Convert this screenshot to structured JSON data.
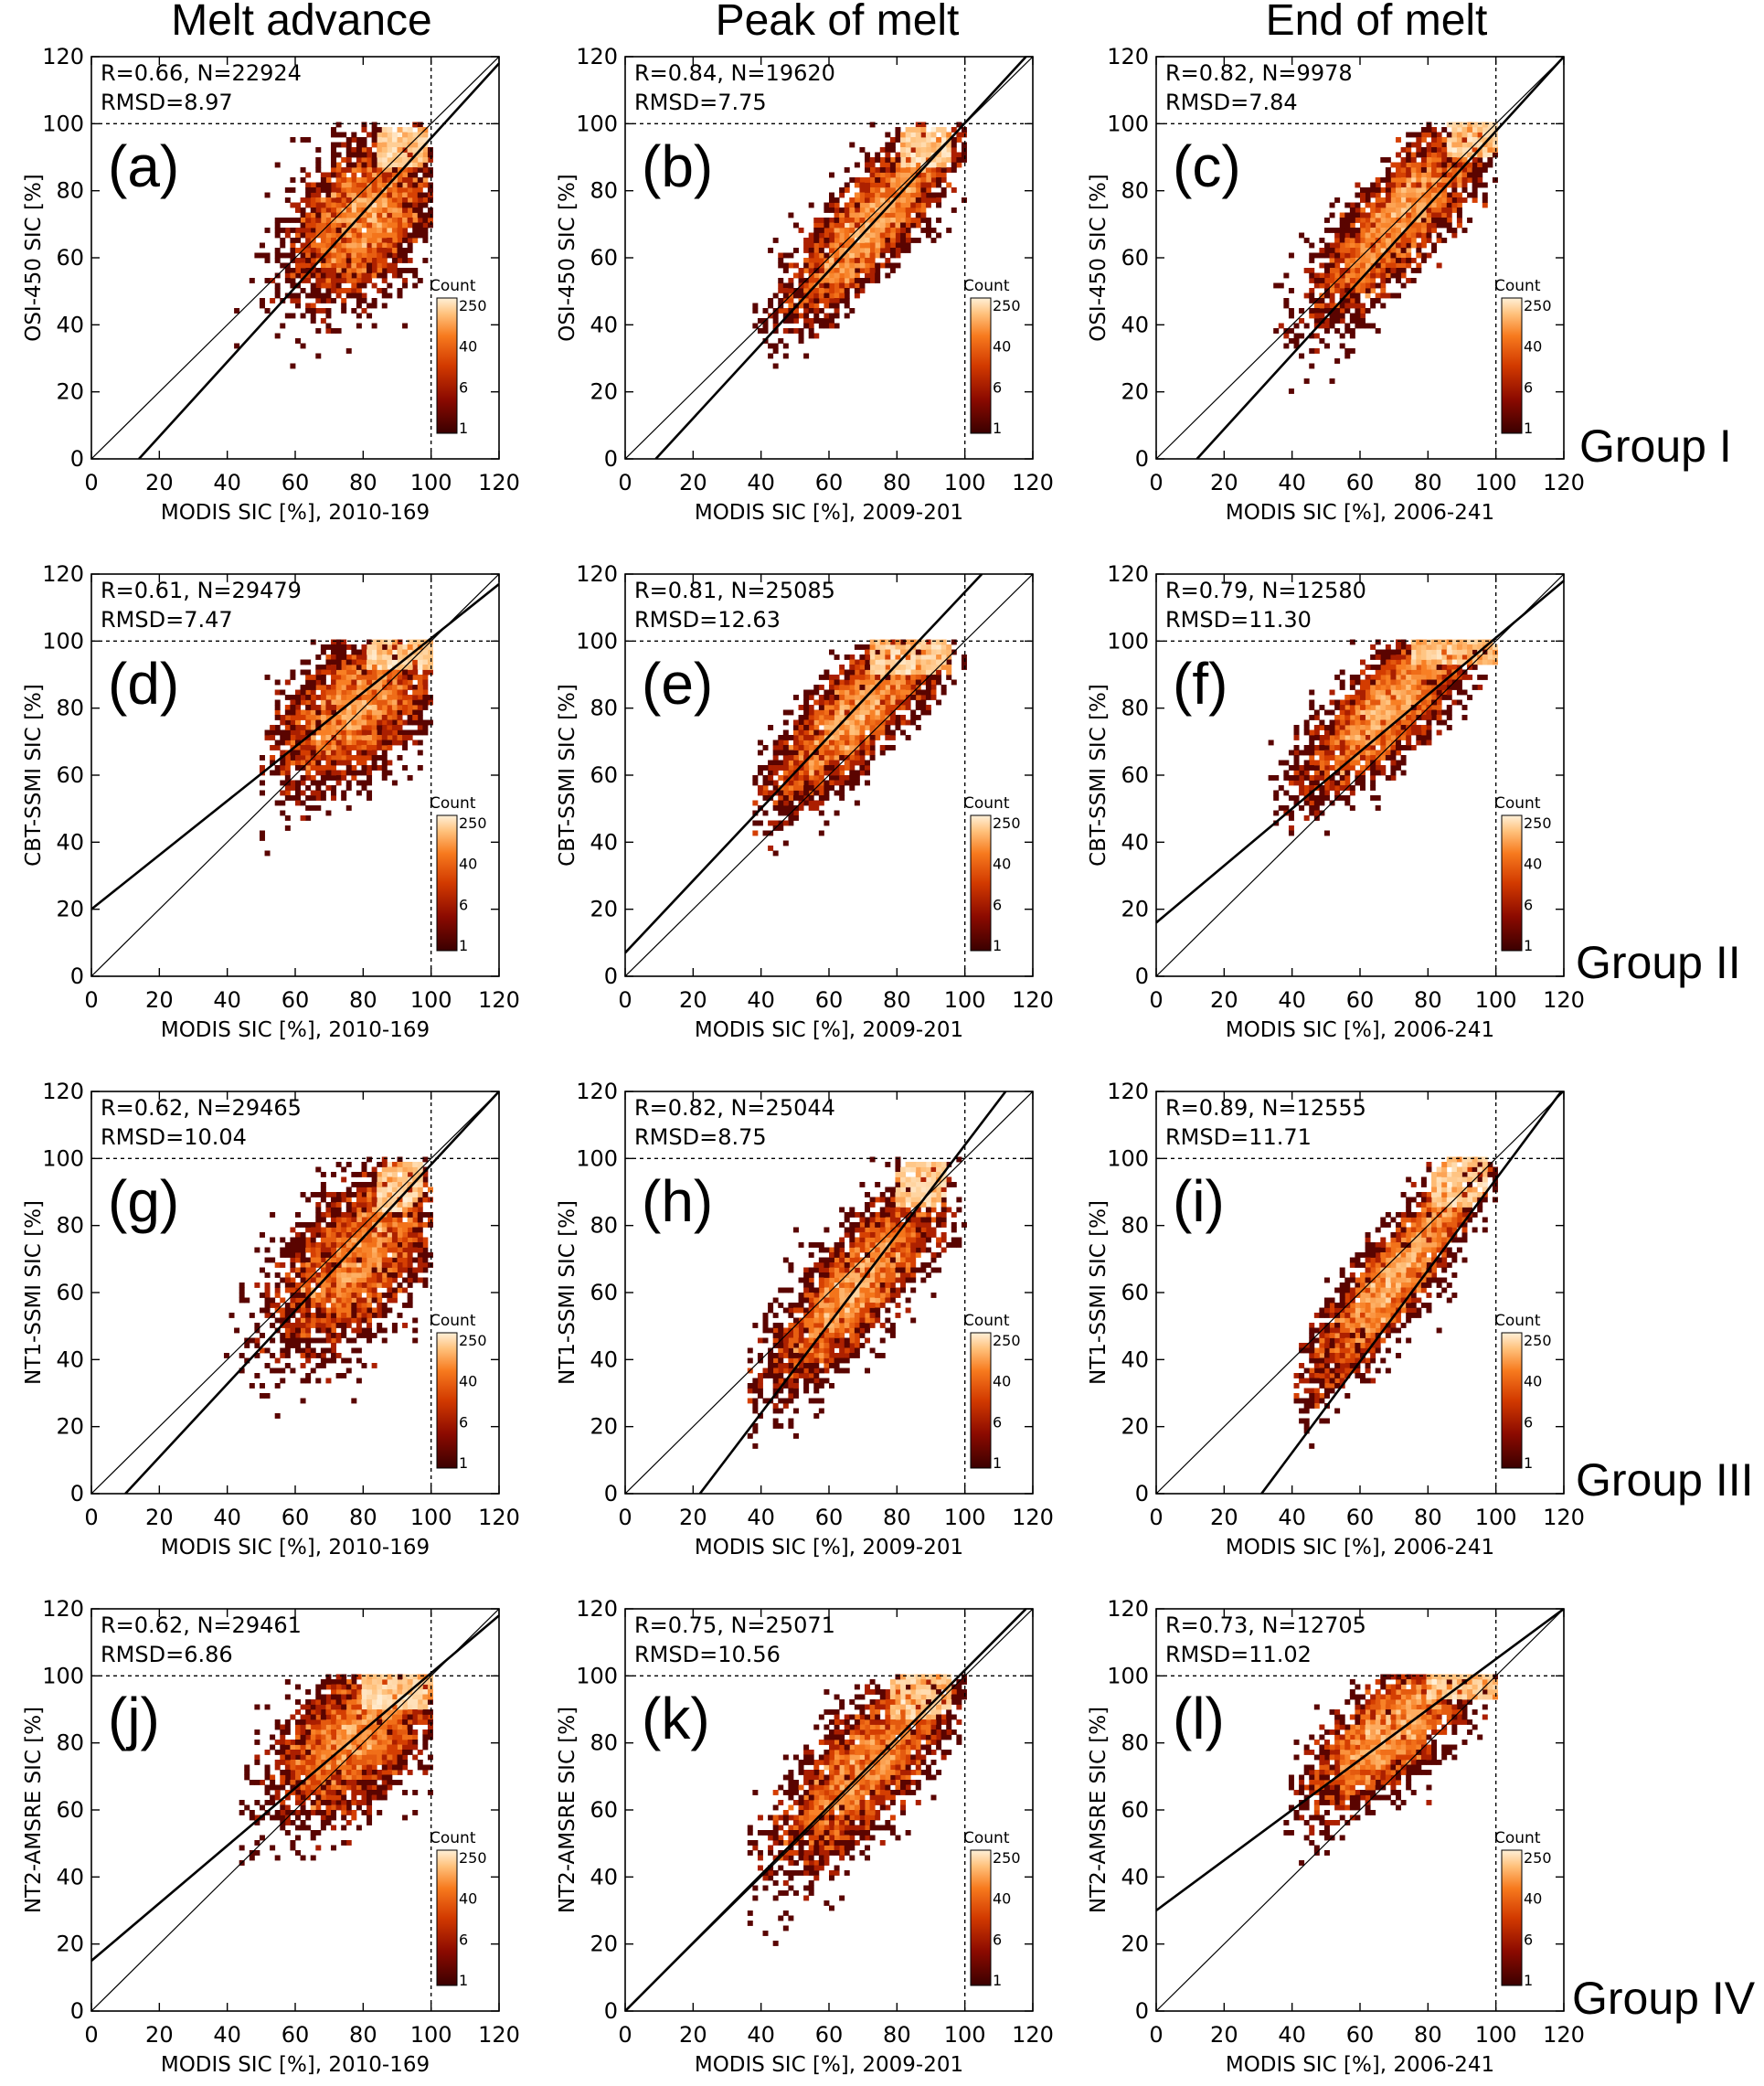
{
  "column_titles": [
    "Melt advance",
    "Peak of melt",
    "End of melt"
  ],
  "group_labels": [
    "Group I",
    "Group II",
    "Group III",
    "Group IV"
  ],
  "colorbar": {
    "title": "Count",
    "ticks": [
      "250",
      "40",
      "6",
      "1"
    ],
    "colors": [
      "#3a0000",
      "#8b0a00",
      "#d23a00",
      "#f77a1e",
      "#ffc07a",
      "#fff0d8"
    ]
  },
  "chart_data": [
    {
      "id": "a",
      "type": "heatmap",
      "letter": "(a)",
      "ylabel": "OSI-450 SIC [%]",
      "xlabel": "MODIS SIC [%], 2010-169",
      "stat1": "R=0.66, N=22924",
      "stat2": "RMSD=8.97",
      "R": 0.66,
      "N": 22924,
      "RMSD": 8.97,
      "regression": [
        [
          14,
          0
        ],
        [
          120,
          118
        ]
      ],
      "cloud": {
        "cx": 80,
        "cy": 72,
        "sx": 11,
        "sy": 13,
        "rho": 0.45,
        "xmin": 42,
        "ymin": 16,
        "core": [
          [
            85,
            88
          ],
          [
            98,
            98
          ]
        ]
      },
      "xlim": [
        0,
        120
      ],
      "ylim": [
        0,
        120
      ],
      "xticks": [
        0,
        20,
        40,
        60,
        80,
        100,
        120
      ],
      "yticks": [
        0,
        20,
        40,
        60,
        80,
        100,
        120
      ]
    },
    {
      "id": "b",
      "type": "heatmap",
      "letter": "(b)",
      "ylabel": "OSI-450 SIC [%]",
      "xlabel": "MODIS SIC [%], 2009-201",
      "stat1": "R=0.84, N=19620",
      "stat2": "RMSD=7.75",
      "R": 0.84,
      "N": 19620,
      "RMSD": 7.75,
      "regression": [
        [
          9,
          0
        ],
        [
          118,
          120
        ]
      ],
      "cloud": {
        "cx": 72,
        "cy": 70,
        "sx": 13,
        "sy": 15,
        "rho": 0.84,
        "xmin": 38,
        "ymin": 14,
        "core": [
          [
            82,
            88
          ],
          [
            95,
            98
          ]
        ]
      },
      "xlim": [
        0,
        120
      ],
      "ylim": [
        0,
        120
      ],
      "xticks": [
        0,
        20,
        40,
        60,
        80,
        100,
        120
      ],
      "yticks": [
        0,
        20,
        40,
        60,
        80,
        100,
        120
      ]
    },
    {
      "id": "c",
      "type": "heatmap",
      "letter": "(c)",
      "ylabel": "OSI-450 SIC [%]",
      "xlabel": "MODIS SIC [%], 2006-241",
      "stat1": "R=0.82, N=9978",
      "stat2": "RMSD=7.84",
      "R": 0.82,
      "N": 9978,
      "RMSD": 7.84,
      "regression": [
        [
          12,
          0
        ],
        [
          120,
          120
        ]
      ],
      "cloud": {
        "cx": 72,
        "cy": 72,
        "sx": 13,
        "sy": 15,
        "rho": 0.82,
        "xmin": 34,
        "ymin": 18,
        "core": [
          [
            86,
            90
          ],
          [
            100,
            100
          ]
        ]
      },
      "xlim": [
        0,
        120
      ],
      "ylim": [
        0,
        120
      ],
      "xticks": [
        0,
        20,
        40,
        60,
        80,
        100,
        120
      ],
      "yticks": [
        0,
        20,
        40,
        60,
        80,
        100,
        120
      ]
    },
    {
      "id": "d",
      "type": "heatmap",
      "letter": "(d)",
      "ylabel": "CBT-SSMI SIC [%]",
      "xlabel": "MODIS SIC [%], 2010-169",
      "stat1": "R=0.61, N=29479",
      "stat2": "RMSD=7.47",
      "R": 0.61,
      "N": 29479,
      "RMSD": 7.47,
      "regression": [
        [
          0,
          20
        ],
        [
          120,
          117
        ]
      ],
      "cloud": {
        "cx": 78,
        "cy": 80,
        "sx": 12,
        "sy": 12,
        "rho": 0.55,
        "xmin": 50,
        "ymin": 15,
        "core": [
          [
            82,
            92
          ],
          [
            99,
            100
          ]
        ]
      },
      "xlim": [
        0,
        120
      ],
      "ylim": [
        0,
        120
      ],
      "xticks": [
        0,
        20,
        40,
        60,
        80,
        100,
        120
      ],
      "yticks": [
        0,
        20,
        40,
        60,
        80,
        100,
        120
      ]
    },
    {
      "id": "e",
      "type": "heatmap",
      "letter": "(e)",
      "ylabel": "CBT-SSMI SIC [%]",
      "xlabel": "MODIS SIC [%], 2009-201",
      "stat1": "R=0.81, N=25085",
      "stat2": "RMSD=12.63",
      "R": 0.81,
      "N": 25085,
      "RMSD": 12.63,
      "regression": [
        [
          0,
          7
        ],
        [
          105,
          120
        ]
      ],
      "cloud": {
        "cx": 68,
        "cy": 78,
        "sx": 13,
        "sy": 14,
        "rho": 0.81,
        "xmin": 38,
        "ymin": 20,
        "core": [
          [
            72,
            90
          ],
          [
            95,
            100
          ]
        ]
      },
      "xlim": [
        0,
        120
      ],
      "ylim": [
        0,
        120
      ],
      "xticks": [
        0,
        20,
        40,
        60,
        80,
        100,
        120
      ],
      "yticks": [
        0,
        20,
        40,
        60,
        80,
        100,
        120
      ]
    },
    {
      "id": "f",
      "type": "heatmap",
      "letter": "(f)",
      "ylabel": "CBT-SSMI SIC [%]",
      "xlabel": "MODIS SIC [%], 2006-241",
      "stat1": "R=0.79, N=12580",
      "stat2": "RMSD=11.30",
      "R": 0.79,
      "N": 12580,
      "RMSD": 11.3,
      "regression": [
        [
          0,
          16
        ],
        [
          120,
          118
        ]
      ],
      "cloud": {
        "cx": 68,
        "cy": 80,
        "sx": 13,
        "sy": 13,
        "rho": 0.79,
        "xmin": 34,
        "ymin": 18,
        "core": [
          [
            75,
            94
          ],
          [
            100,
            100
          ]
        ]
      },
      "xlim": [
        0,
        120
      ],
      "ylim": [
        0,
        120
      ],
      "xticks": [
        0,
        20,
        40,
        60,
        80,
        100,
        120
      ],
      "yticks": [
        0,
        20,
        40,
        60,
        80,
        100,
        120
      ]
    },
    {
      "id": "g",
      "type": "heatmap",
      "letter": "(g)",
      "ylabel": "NT1-SSMI SIC [%]",
      "xlabel": "MODIS SIC [%], 2010-169",
      "stat1": "R=0.62, N=29465",
      "stat2": "RMSD=10.04",
      "R": 0.62,
      "N": 29465,
      "RMSD": 10.04,
      "regression": [
        [
          10,
          0
        ],
        [
          120,
          120
        ]
      ],
      "cloud": {
        "cx": 78,
        "cy": 70,
        "sx": 12,
        "sy": 14,
        "rho": 0.55,
        "xmin": 40,
        "ymin": 14,
        "core": [
          [
            84,
            85
          ],
          [
            97,
            98
          ]
        ]
      },
      "xlim": [
        0,
        120
      ],
      "ylim": [
        0,
        120
      ],
      "xticks": [
        0,
        20,
        40,
        60,
        80,
        100,
        120
      ],
      "yticks": [
        0,
        20,
        40,
        60,
        80,
        100,
        120
      ]
    },
    {
      "id": "h",
      "type": "heatmap",
      "letter": "(h)",
      "ylabel": "NT1-SSMI SIC [%]",
      "xlabel": "MODIS SIC [%], 2009-201",
      "stat1": "R=0.82, N=25044",
      "stat2": "RMSD=8.75",
      "R": 0.82,
      "N": 25044,
      "RMSD": 8.75,
      "regression": [
        [
          22,
          0
        ],
        [
          112,
          120
        ]
      ],
      "cloud": {
        "cx": 68,
        "cy": 62,
        "sx": 13,
        "sy": 16,
        "rho": 0.82,
        "xmin": 36,
        "ymin": 14,
        "core": [
          [
            80,
            86
          ],
          [
            94,
            98
          ]
        ]
      },
      "xlim": [
        0,
        120
      ],
      "ylim": [
        0,
        120
      ],
      "xticks": [
        0,
        20,
        40,
        60,
        80,
        100,
        120
      ],
      "yticks": [
        0,
        20,
        40,
        60,
        80,
        100,
        120
      ]
    },
    {
      "id": "i",
      "type": "heatmap",
      "letter": "(i)",
      "ylabel": "NT1-SSMI SIC [%]",
      "xlabel": "MODIS SIC [%], 2006-241",
      "stat1": "R=0.89, N=12555",
      "stat2": "RMSD=11.71",
      "R": 0.89,
      "N": 12555,
      "RMSD": 11.71,
      "regression": [
        [
          31,
          0
        ],
        [
          120,
          121
        ]
      ],
      "cloud": {
        "cx": 70,
        "cy": 64,
        "sx": 13,
        "sy": 17,
        "rho": 0.89,
        "xmin": 40,
        "ymin": 14,
        "core": [
          [
            82,
            86
          ],
          [
            97,
            100
          ]
        ]
      },
      "xlim": [
        0,
        120
      ],
      "ylim": [
        0,
        120
      ],
      "xticks": [
        0,
        20,
        40,
        60,
        80,
        100,
        120
      ],
      "yticks": [
        0,
        20,
        40,
        60,
        80,
        100,
        120
      ]
    },
    {
      "id": "j",
      "type": "heatmap",
      "letter": "(j)",
      "ylabel": "NT2-AMSRE SIC [%]",
      "xlabel": "MODIS SIC [%], 2010-169",
      "stat1": "R=0.62, N=29461",
      "stat2": "RMSD=6.86",
      "R": 0.62,
      "N": 29461,
      "RMSD": 6.86,
      "regression": [
        [
          0,
          15
        ],
        [
          120,
          118
        ]
      ],
      "cloud": {
        "cx": 78,
        "cy": 82,
        "sx": 12,
        "sy": 12,
        "rho": 0.55,
        "xmin": 42,
        "ymin": 16,
        "core": [
          [
            80,
            90
          ],
          [
            99,
            100
          ]
        ]
      },
      "xlim": [
        0,
        120
      ],
      "ylim": [
        0,
        120
      ],
      "xticks": [
        0,
        20,
        40,
        60,
        80,
        100,
        120
      ],
      "yticks": [
        0,
        20,
        40,
        60,
        80,
        100,
        120
      ]
    },
    {
      "id": "k",
      "type": "heatmap",
      "letter": "(k)",
      "ylabel": "NT2-AMSRE SIC [%]",
      "xlabel": "MODIS SIC [%], 2009-201",
      "stat1": "R=0.75, N=25071",
      "stat2": "RMSD=10.56",
      "R": 0.75,
      "N": 25071,
      "RMSD": 10.56,
      "regression": [
        [
          0,
          0
        ],
        [
          118,
          120
        ]
      ],
      "cloud": {
        "cx": 70,
        "cy": 72,
        "sx": 13,
        "sy": 15,
        "rho": 0.75,
        "xmin": 36,
        "ymin": 16,
        "core": [
          [
            78,
            88
          ],
          [
            95,
            100
          ]
        ]
      },
      "xlim": [
        0,
        120
      ],
      "ylim": [
        0,
        120
      ],
      "xticks": [
        0,
        20,
        40,
        60,
        80,
        100,
        120
      ],
      "yticks": [
        0,
        20,
        40,
        60,
        80,
        100,
        120
      ]
    },
    {
      "id": "l",
      "type": "heatmap",
      "letter": "(l)",
      "ylabel": "NT2-AMSRE SIC [%]",
      "xlabel": "MODIS SIC [%], 2006-241",
      "stat1": "R=0.73, N=12705",
      "stat2": "RMSD=11.02",
      "R": 0.73,
      "N": 12705,
      "RMSD": 11.02,
      "regression": [
        [
          0,
          30
        ],
        [
          120,
          120
        ]
      ],
      "cloud": {
        "cx": 70,
        "cy": 84,
        "sx": 12,
        "sy": 12,
        "rho": 0.73,
        "xmin": 38,
        "ymin": 16,
        "core": [
          [
            80,
            94
          ],
          [
            100,
            100
          ]
        ]
      },
      "xlim": [
        0,
        120
      ],
      "ylim": [
        0,
        120
      ],
      "xticks": [
        0,
        20,
        40,
        60,
        80,
        100,
        120
      ],
      "yticks": [
        0,
        20,
        40,
        60,
        80,
        100,
        120
      ]
    }
  ]
}
